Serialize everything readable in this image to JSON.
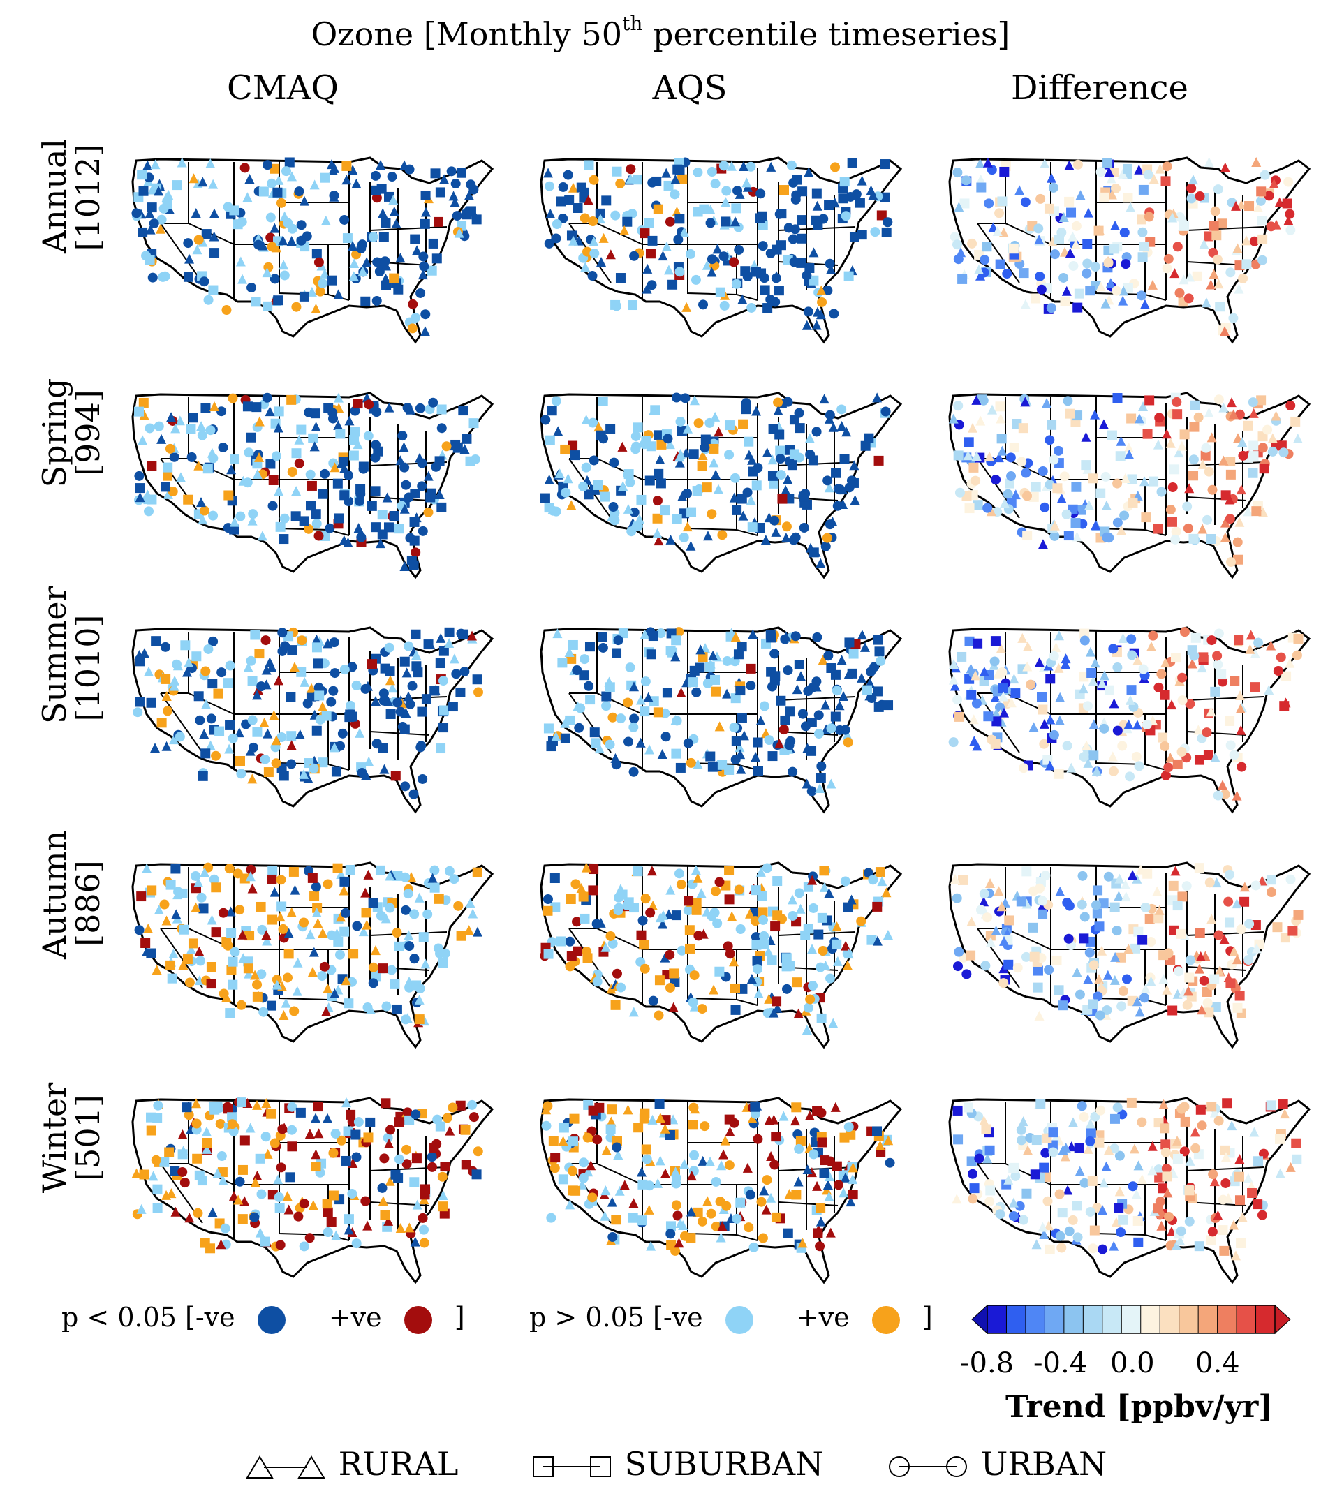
{
  "figure": {
    "title_prefix": "Ozone [Monthly 50",
    "title_sup": "th",
    "title_suffix": " percentile timeseries]",
    "columns": [
      "CMAQ",
      "AQS",
      "Difference"
    ],
    "rows": [
      {
        "season": "Annual",
        "count": "[1012]"
      },
      {
        "season": "Spring",
        "count": "[994]"
      },
      {
        "season": "Summer",
        "count": "[1010]"
      },
      {
        "season": "Autumn",
        "count": "[886]"
      },
      {
        "season": "Winter",
        "count": "[501]"
      }
    ]
  },
  "significance_legend": {
    "sig_label": "p < 0.05  [-ve",
    "sig_pos": "+ve",
    "insig_label": "p > 0.05  [-ve",
    "insig_pos": "+ve",
    "close": "]",
    "colors": {
      "sig_neg": "#0e4fa3",
      "sig_pos": "#a30d0d",
      "insig_neg": "#8fd3f6",
      "insig_pos": "#f7a21b"
    }
  },
  "colorbar": {
    "ticks": [
      "-0.8",
      "-0.4",
      "0.0",
      "0.4"
    ],
    "label": "Trend [ppbv/yr]",
    "colors": [
      "#1a1ad6",
      "#2f5ff0",
      "#4f86f5",
      "#6fa8f3",
      "#8cc4f0",
      "#aad8f3",
      "#c8e8f6",
      "#e4f4f8",
      "#fdf3e0",
      "#fbe0c0",
      "#f8c79c",
      "#f4a67a",
      "#ee7f60",
      "#e65148",
      "#d62a2e"
    ],
    "underflow_color": "#1010b0",
    "overflow_color": "#c81e26"
  },
  "site_legend": {
    "rural": "RURAL",
    "suburban": "SUBURBAN",
    "urban": "URBAN"
  }
}
